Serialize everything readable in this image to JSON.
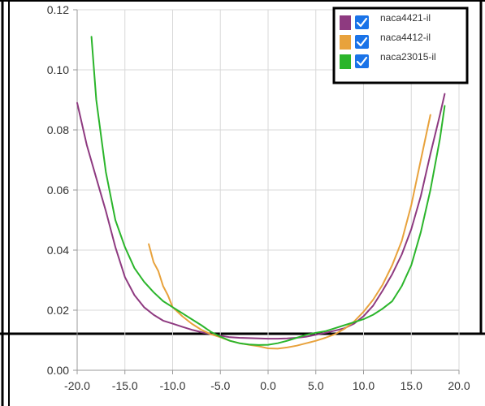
{
  "chart_data": {
    "type": "line",
    "title": "",
    "xlabel": "",
    "ylabel": "",
    "xlim": [
      -20,
      20
    ],
    "ylim": [
      0,
      0.12
    ],
    "grid": true,
    "legend_position": "top-right",
    "x_ticks": [
      "-20.0",
      "-15.0",
      "-10.0",
      "-5.0",
      "0.0",
      "5.0",
      "10.0",
      "15.0",
      "20.0"
    ],
    "y_ticks": [
      "0.00",
      "0.02",
      "0.04",
      "0.06",
      "0.08",
      "0.10",
      "0.12"
    ],
    "series": [
      {
        "name": "naca4421-il",
        "color": "#8e3a80",
        "checked": true,
        "x": [
          -20,
          -19,
          -18,
          -17,
          -16,
          -15,
          -14,
          -13,
          -12,
          -11,
          -10,
          -9,
          -8,
          -7,
          -6,
          -5,
          -4,
          -3,
          -2,
          -1,
          0,
          1,
          2,
          3,
          4,
          5,
          6,
          7,
          8,
          9,
          10,
          11,
          12,
          13,
          14,
          15,
          16,
          17,
          18,
          18.5
        ],
        "y": [
          0.089,
          0.075,
          0.064,
          0.053,
          0.041,
          0.031,
          0.025,
          0.021,
          0.0185,
          0.0165,
          0.0155,
          0.0145,
          0.0135,
          0.0127,
          0.012,
          0.0115,
          0.011,
          0.0108,
          0.0107,
          0.0106,
          0.0105,
          0.0105,
          0.0106,
          0.0108,
          0.0112,
          0.0118,
          0.0125,
          0.0132,
          0.014,
          0.0155,
          0.018,
          0.0215,
          0.0265,
          0.032,
          0.0385,
          0.047,
          0.058,
          0.072,
          0.085,
          0.092
        ]
      },
      {
        "name": "naca4412-il",
        "color": "#e8a23c",
        "checked": true,
        "x": [
          -12.5,
          -12,
          -11.5,
          -11,
          -10.5,
          -10,
          -9,
          -8,
          -7,
          -6,
          -5,
          -4,
          -3,
          -2,
          -1,
          0,
          1,
          2,
          3,
          4,
          5,
          6,
          7,
          8,
          9,
          10,
          11,
          12,
          13,
          14,
          15,
          16,
          17
        ],
        "y": [
          0.042,
          0.036,
          0.033,
          0.028,
          0.025,
          0.021,
          0.018,
          0.0155,
          0.0135,
          0.012,
          0.011,
          0.0098,
          0.009,
          0.0085,
          0.008,
          0.0073,
          0.0072,
          0.0076,
          0.0082,
          0.009,
          0.0098,
          0.0108,
          0.012,
          0.0138,
          0.0162,
          0.0195,
          0.0235,
          0.0285,
          0.035,
          0.043,
          0.055,
          0.07,
          0.085
        ]
      },
      {
        "name": "naca23015-il",
        "color": "#2bb52b",
        "checked": true,
        "x": [
          -18.5,
          -18,
          -17,
          -16,
          -15,
          -14,
          -13,
          -12,
          -11,
          -10,
          -9,
          -8,
          -7,
          -6,
          -5,
          -4,
          -3,
          -2,
          -1,
          0,
          1,
          2,
          3,
          4,
          5,
          6,
          7,
          8,
          9,
          10,
          11,
          12,
          13,
          14,
          15,
          16,
          17,
          18,
          18.5
        ],
        "y": [
          0.111,
          0.09,
          0.066,
          0.05,
          0.041,
          0.034,
          0.0295,
          0.026,
          0.023,
          0.021,
          0.019,
          0.017,
          0.015,
          0.0128,
          0.0112,
          0.0098,
          0.009,
          0.0086,
          0.0084,
          0.0085,
          0.009,
          0.0098,
          0.0108,
          0.0118,
          0.0125,
          0.013,
          0.014,
          0.015,
          0.016,
          0.017,
          0.0185,
          0.0205,
          0.023,
          0.028,
          0.035,
          0.046,
          0.06,
          0.077,
          0.088
        ]
      }
    ]
  }
}
